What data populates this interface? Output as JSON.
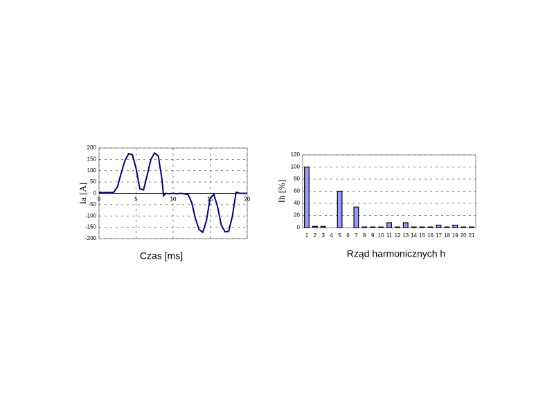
{
  "chart_data": [
    {
      "type": "line",
      "x_label": "Czas [ms]",
      "y_label": "Ia [A]",
      "color": "#000080",
      "x": [
        0,
        0.5,
        1,
        1.5,
        2,
        2.5,
        3,
        3.5,
        4,
        4.5,
        5,
        5.5,
        6,
        6.5,
        7,
        7.5,
        8,
        8.5,
        8.7,
        9,
        9.5,
        10,
        10.5,
        11,
        11.5,
        12,
        12.5,
        13,
        13.5,
        14,
        14.5,
        15,
        15.5,
        16,
        16.5,
        17,
        17.5,
        18,
        18.5,
        19,
        19.5,
        20
      ],
      "values": [
        5,
        3,
        4,
        3,
        5,
        30,
        90,
        145,
        175,
        170,
        110,
        20,
        15,
        80,
        150,
        178,
        165,
        60,
        -10,
        0,
        -2,
        0,
        -2,
        0,
        -2,
        -5,
        -40,
        -110,
        -160,
        -172,
        -120,
        -20,
        -5,
        -60,
        -140,
        -170,
        -168,
        -100,
        5,
        0,
        0,
        0
      ],
      "xlim": [
        0,
        20
      ],
      "xticks": [
        0,
        5,
        10,
        15,
        20
      ],
      "ylim": [
        -200,
        200
      ],
      "yticks": [
        -200,
        -150,
        -100,
        -50,
        0,
        50,
        100,
        150,
        200
      ],
      "grid": "both"
    },
    {
      "type": "bar",
      "x_label": "Rząd harmonicznych h",
      "y_label": "Ih [%]",
      "color": "#9999ff",
      "categories": [
        "1",
        "2",
        "3",
        "4",
        "5",
        "6",
        "7",
        "8",
        "9",
        "10",
        "11",
        "12",
        "13",
        "14",
        "15",
        "16",
        "17",
        "18",
        "19",
        "20",
        "21"
      ],
      "values": [
        100,
        2,
        2,
        0,
        60,
        0,
        34,
        1,
        1,
        1,
        8,
        1,
        8,
        1,
        1,
        1,
        4,
        1,
        4,
        1,
        1
      ],
      "ylim": [
        0,
        120
      ],
      "yticks": [
        0,
        20,
        40,
        60,
        80,
        100,
        120
      ],
      "grid": "y"
    }
  ]
}
